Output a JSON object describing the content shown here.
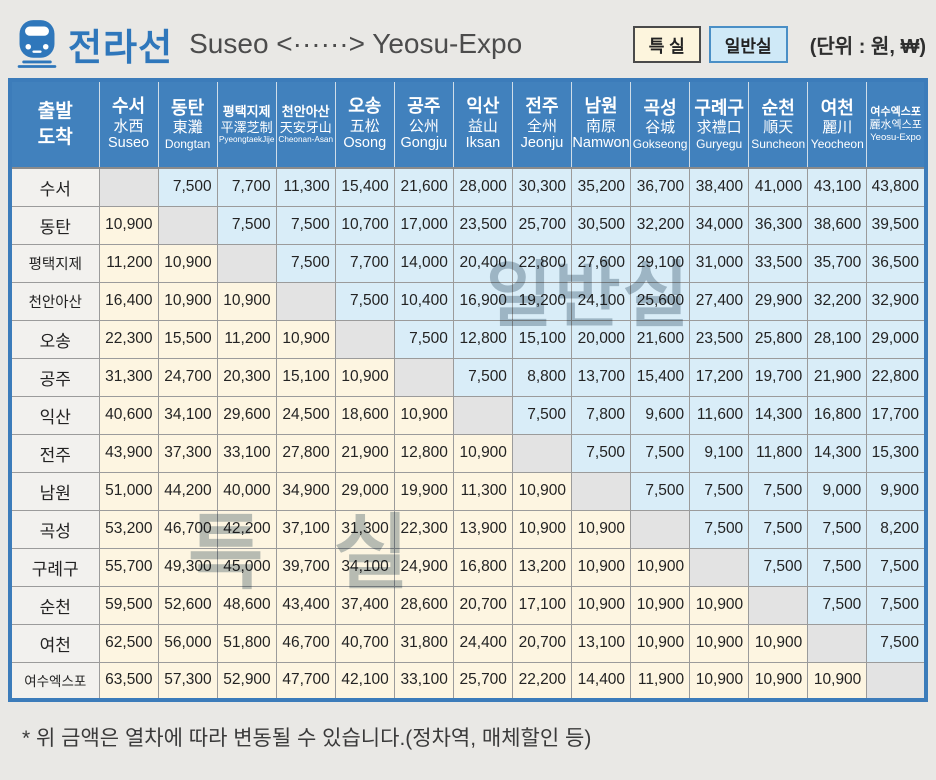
{
  "header": {
    "line_title": "전라선",
    "route": "Suseo <······> Yeosu-Expo",
    "legend": {
      "special": "특 실",
      "general": "일반실"
    },
    "unit_label": "(단위 : 원, ₩)"
  },
  "table": {
    "corner": {
      "line1": "출발",
      "line2": "도착"
    },
    "stations": [
      {
        "ko": "수서",
        "hanja": "水西",
        "en": "Suseo"
      },
      {
        "ko": "동탄",
        "hanja": "東灘",
        "en": "Dongtan"
      },
      {
        "ko": "평택지제",
        "hanja": "平澤芝制",
        "en": "PyeongtaekJije"
      },
      {
        "ko": "천안아산",
        "hanja": "天安牙山",
        "en": "Cheonan-Asan"
      },
      {
        "ko": "오송",
        "hanja": "五松",
        "en": "Osong"
      },
      {
        "ko": "공주",
        "hanja": "公州",
        "en": "Gongju"
      },
      {
        "ko": "익산",
        "hanja": "益山",
        "en": "Iksan"
      },
      {
        "ko": "전주",
        "hanja": "全州",
        "en": "Jeonju"
      },
      {
        "ko": "남원",
        "hanja": "南原",
        "en": "Namwon"
      },
      {
        "ko": "곡성",
        "hanja": "谷城",
        "en": "Gokseong"
      },
      {
        "ko": "구례구",
        "hanja": "求禮口",
        "en": "Guryegu"
      },
      {
        "ko": "순천",
        "hanja": "順天",
        "en": "Suncheon"
      },
      {
        "ko": "여천",
        "hanja": "麗川",
        "en": "Yeocheon"
      },
      {
        "ko": "여수엑스포",
        "hanja": "麗水엑스포",
        "en": "Yeosu-Expo"
      }
    ],
    "fares": [
      [
        null,
        7500,
        7700,
        11300,
        15400,
        21600,
        28000,
        30300,
        35200,
        36700,
        38400,
        41000,
        43100,
        43800
      ],
      [
        10900,
        null,
        7500,
        7500,
        10700,
        17000,
        23500,
        25700,
        30500,
        32200,
        34000,
        36300,
        38600,
        39500
      ],
      [
        11200,
        10900,
        null,
        7500,
        7700,
        14000,
        20400,
        22800,
        27600,
        29100,
        31000,
        33500,
        35700,
        36500
      ],
      [
        16400,
        10900,
        10900,
        null,
        7500,
        10400,
        16900,
        19200,
        24100,
        25600,
        27400,
        29900,
        32200,
        32900
      ],
      [
        22300,
        15500,
        11200,
        10900,
        null,
        7500,
        12800,
        15100,
        20000,
        21600,
        23500,
        25800,
        28100,
        29000
      ],
      [
        31300,
        24700,
        20300,
        15100,
        10900,
        null,
        7500,
        8800,
        13700,
        15400,
        17200,
        19700,
        21900,
        22800
      ],
      [
        40600,
        34100,
        29600,
        24500,
        18600,
        10900,
        null,
        7500,
        7800,
        9600,
        11600,
        14300,
        16800,
        17700
      ],
      [
        43900,
        37300,
        33100,
        27800,
        21900,
        12800,
        10900,
        null,
        7500,
        7500,
        9100,
        11800,
        14300,
        15300
      ],
      [
        51000,
        44200,
        40000,
        34900,
        29000,
        19900,
        11300,
        10900,
        null,
        7500,
        7500,
        7500,
        9000,
        9900
      ],
      [
        53200,
        46700,
        42200,
        37100,
        31300,
        22300,
        13900,
        10900,
        10900,
        null,
        7500,
        7500,
        7500,
        8200
      ],
      [
        55700,
        49300,
        45000,
        39700,
        34100,
        24900,
        16800,
        13200,
        10900,
        10900,
        null,
        7500,
        7500,
        7500
      ],
      [
        59500,
        52600,
        48600,
        43400,
        37400,
        28600,
        20700,
        17100,
        10900,
        10900,
        10900,
        null,
        7500,
        7500
      ],
      [
        62500,
        56000,
        51800,
        46700,
        40700,
        31800,
        24400,
        20700,
        13100,
        10900,
        10900,
        10900,
        null,
        7500
      ],
      [
        63500,
        57300,
        52900,
        47700,
        42100,
        33100,
        25700,
        22200,
        14400,
        11900,
        10900,
        10900,
        10900,
        null
      ]
    ],
    "watermark_general": "일반실",
    "watermark_special": "특실"
  },
  "footnote": "* 위 금액은 열차에 따라 변동될 수 있습니다.(정차역, 매체할인 등)",
  "colors": {
    "header_blue": "#4181bd",
    "general_cell": "#d9edf8",
    "special_cell": "#fdf5e1",
    "diagonal_cell": "#e3e3e3",
    "row_label_bg": "#f2f1ee",
    "table_border": "#3c7cba",
    "grid_line": "#9b9b9b",
    "badge_special_bg": "#fdf5dd",
    "badge_general_bg": "#cfe9f7",
    "accent_blue": "#2f77bb"
  }
}
